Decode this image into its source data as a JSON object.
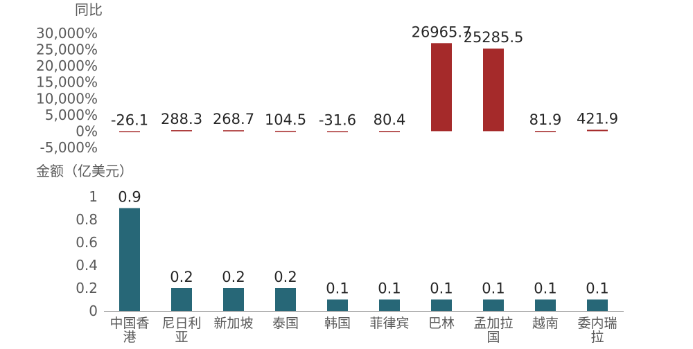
{
  "chart_data": [
    {
      "type": "bar",
      "ylabel": "同比",
      "ytick_labels": [
        "30,000%",
        "25,000%",
        "20,000%",
        "15,000%",
        "10,000%",
        "5,000%",
        "0%",
        "-5,000%"
      ],
      "ylim": [
        -5000,
        30000
      ],
      "categories": [
        "中国香港",
        "尼日利亚",
        "新加坡",
        "泰国",
        "韩国",
        "菲律宾",
        "巴林",
        "孟加拉国",
        "越南",
        "委内瑞拉"
      ],
      "values": [
        -26.1,
        288.3,
        268.7,
        104.5,
        -31.6,
        80.4,
        26965.7,
        25285.5,
        81.9,
        421.9
      ],
      "data_labels": [
        "-26.1",
        "288.3",
        "268.7",
        "104.5",
        "-31.6",
        "80.4",
        "26965.7",
        "25285.5",
        "81.9",
        "421.9"
      ],
      "color": "#a52a2a",
      "grid": false
    },
    {
      "type": "bar",
      "ylabel": "金额（亿美元）",
      "ytick_labels": [
        "1",
        "0.8",
        "0.6",
        "0.4",
        "0.2",
        "0"
      ],
      "ylim": [
        0,
        1
      ],
      "categories": [
        "中国香港",
        "尼日利亚",
        "新加坡",
        "泰国",
        "韩国",
        "菲律宾",
        "巴林",
        "孟加拉国",
        "越南",
        "委内瑞拉"
      ],
      "category_lines": [
        [
          "中国香",
          "港"
        ],
        [
          "尼日利",
          "亚"
        ],
        [
          "新加坡"
        ],
        [
          "泰国"
        ],
        [
          "韩国"
        ],
        [
          "菲律宾"
        ],
        [
          "巴林"
        ],
        [
          "孟加拉",
          "国"
        ],
        [
          "越南"
        ],
        [
          "委内瑞",
          "拉"
        ]
      ],
      "values": [
        0.9,
        0.2,
        0.2,
        0.2,
        0.1,
        0.1,
        0.1,
        0.1,
        0.1,
        0.1
      ],
      "data_labels": [
        "0.9",
        "0.2",
        "0.2",
        "0.2",
        "0.1",
        "0.1",
        "0.1",
        "0.1",
        "0.1",
        "0.1"
      ],
      "color": "#276777",
      "grid": false
    }
  ]
}
